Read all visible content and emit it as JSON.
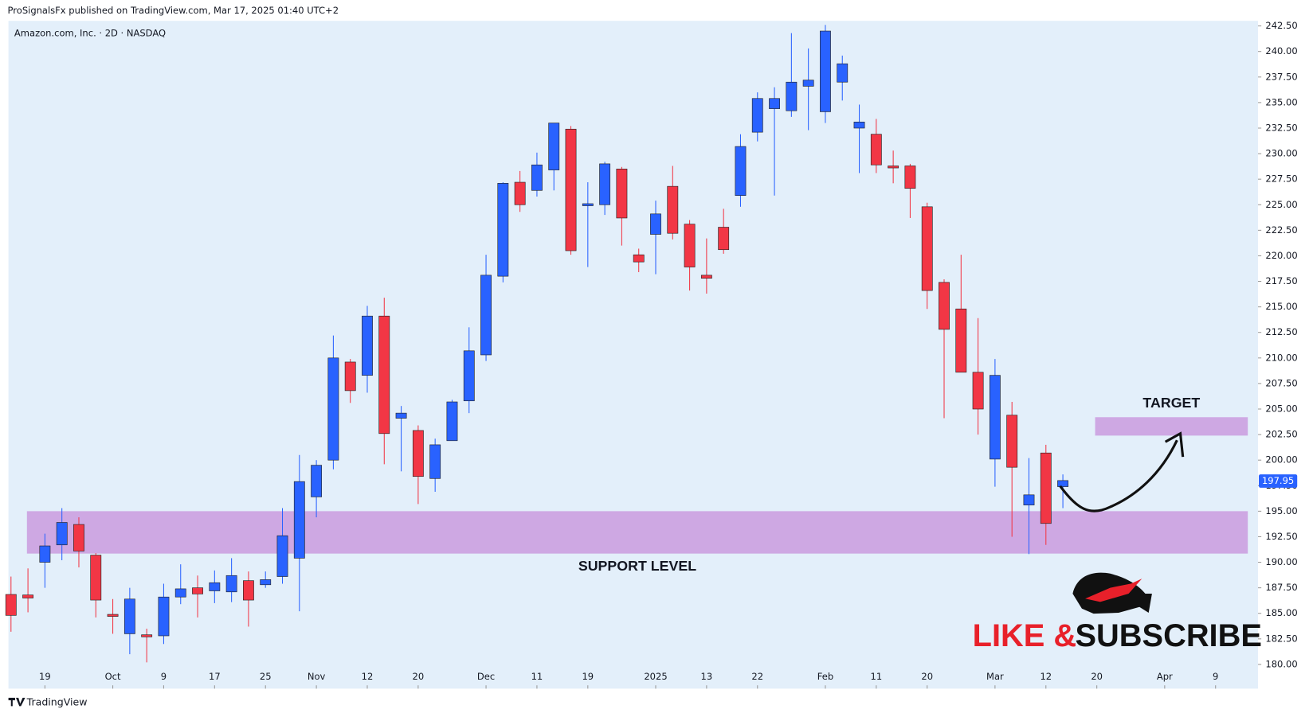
{
  "header": {
    "publisher": "ProSignalsFx published on TradingView.com, Mar 17, 2025 01:40 UTC+2",
    "footer": "TradingView"
  },
  "chart_data": {
    "type": "candlestick",
    "title": "Amazon.com, Inc. · 2D · NASDAQ",
    "up_color": "#2962ff",
    "down_color": "#f23645",
    "candles": [
      {
        "open": 186.85,
        "high": 188.6,
        "low": 183.2,
        "close": 184.8
      },
      {
        "open": 186.8,
        "high": 189.4,
        "low": 185.1,
        "close": 186.5
      },
      {
        "open": 190.0,
        "high": 192.8,
        "low": 187.5,
        "close": 191.6
      },
      {
        "open": 191.7,
        "high": 195.3,
        "low": 190.2,
        "close": 193.9
      },
      {
        "open": 193.7,
        "high": 194.4,
        "low": 189.5,
        "close": 191.1
      },
      {
        "open": 190.7,
        "high": 190.9,
        "low": 184.6,
        "close": 186.3
      },
      {
        "open": 184.9,
        "high": 186.4,
        "low": 183.0,
        "close": 184.7
      },
      {
        "open": 183.0,
        "high": 187.5,
        "low": 181.0,
        "close": 186.4
      },
      {
        "open": 182.9,
        "high": 183.5,
        "low": 180.2,
        "close": 182.7
      },
      {
        "open": 182.8,
        "high": 187.9,
        "low": 182.0,
        "close": 186.6
      },
      {
        "open": 186.6,
        "high": 189.8,
        "low": 185.9,
        "close": 187.4
      },
      {
        "open": 187.5,
        "high": 188.7,
        "low": 184.6,
        "close": 186.9
      },
      {
        "open": 187.2,
        "high": 189.2,
        "low": 186.0,
        "close": 188.0
      },
      {
        "open": 187.1,
        "high": 190.4,
        "low": 186.1,
        "close": 188.7
      },
      {
        "open": 188.2,
        "high": 189.1,
        "low": 183.7,
        "close": 186.3
      },
      {
        "open": 187.8,
        "high": 189.1,
        "low": 187.5,
        "close": 188.3
      },
      {
        "open": 188.6,
        "high": 195.3,
        "low": 187.9,
        "close": 192.6
      },
      {
        "open": 190.4,
        "high": 200.5,
        "low": 185.2,
        "close": 197.9
      },
      {
        "open": 196.4,
        "high": 200.0,
        "low": 194.4,
        "close": 199.5
      },
      {
        "open": 200.0,
        "high": 212.2,
        "low": 199.1,
        "close": 210.0
      },
      {
        "open": 209.6,
        "high": 209.9,
        "low": 205.6,
        "close": 206.8
      },
      {
        "open": 208.3,
        "high": 215.1,
        "low": 206.6,
        "close": 214.1
      },
      {
        "open": 214.1,
        "high": 215.9,
        "low": 199.6,
        "close": 202.6
      },
      {
        "open": 204.1,
        "high": 205.3,
        "low": 198.9,
        "close": 204.6
      },
      {
        "open": 202.9,
        "high": 203.4,
        "low": 195.7,
        "close": 198.4
      },
      {
        "open": 198.2,
        "high": 202.1,
        "low": 196.9,
        "close": 201.5
      },
      {
        "open": 201.9,
        "high": 205.9,
        "low": 201.9,
        "close": 205.7
      },
      {
        "open": 205.8,
        "high": 213.0,
        "low": 204.6,
        "close": 210.7
      },
      {
        "open": 210.3,
        "high": 220.1,
        "low": 209.7,
        "close": 218.1
      },
      {
        "open": 218.0,
        "high": 227.2,
        "low": 217.4,
        "close": 227.1
      },
      {
        "open": 227.2,
        "high": 228.3,
        "low": 224.3,
        "close": 225.0
      },
      {
        "open": 226.4,
        "high": 230.1,
        "low": 225.8,
        "close": 228.9
      },
      {
        "open": 228.4,
        "high": 233.0,
        "low": 226.4,
        "close": 233.0
      },
      {
        "open": 232.4,
        "high": 232.7,
        "low": 220.1,
        "close": 220.5
      },
      {
        "open": 224.9,
        "high": 227.2,
        "low": 218.9,
        "close": 225.1
      },
      {
        "open": 225.0,
        "high": 229.2,
        "low": 224.0,
        "close": 229.0
      },
      {
        "open": 228.5,
        "high": 228.7,
        "low": 221.0,
        "close": 223.7
      },
      {
        "open": 220.1,
        "high": 220.7,
        "low": 218.4,
        "close": 219.4
      },
      {
        "open": 222.1,
        "high": 225.4,
        "low": 218.2,
        "close": 224.1
      },
      {
        "open": 226.8,
        "high": 228.8,
        "low": 221.6,
        "close": 222.2
      },
      {
        "open": 223.1,
        "high": 223.5,
        "low": 216.6,
        "close": 218.9
      },
      {
        "open": 218.1,
        "high": 221.7,
        "low": 216.3,
        "close": 217.8
      },
      {
        "open": 222.8,
        "high": 224.6,
        "low": 220.2,
        "close": 220.6
      },
      {
        "open": 225.9,
        "high": 231.9,
        "low": 224.8,
        "close": 230.7
      },
      {
        "open": 232.1,
        "high": 236.0,
        "low": 231.2,
        "close": 235.4
      },
      {
        "open": 234.4,
        "high": 236.5,
        "low": 225.9,
        "close": 235.4
      },
      {
        "open": 234.2,
        "high": 241.8,
        "low": 233.6,
        "close": 237.0
      },
      {
        "open": 236.6,
        "high": 240.3,
        "low": 232.3,
        "close": 237.2
      },
      {
        "open": 234.1,
        "high": 242.6,
        "low": 233.0,
        "close": 242.0
      },
      {
        "open": 237.0,
        "high": 239.6,
        "low": 235.2,
        "close": 238.8
      },
      {
        "open": 232.5,
        "high": 234.8,
        "low": 228.1,
        "close": 233.1
      },
      {
        "open": 231.9,
        "high": 233.4,
        "low": 228.1,
        "close": 228.9
      },
      {
        "open": 228.8,
        "high": 230.3,
        "low": 227.1,
        "close": 228.6
      },
      {
        "open": 228.8,
        "high": 229.0,
        "low": 223.7,
        "close": 226.6
      },
      {
        "open": 224.8,
        "high": 225.2,
        "low": 214.8,
        "close": 216.6
      },
      {
        "open": 217.4,
        "high": 217.7,
        "low": 204.1,
        "close": 212.8
      },
      {
        "open": 214.8,
        "high": 220.1,
        "low": 208.6,
        "close": 208.6
      },
      {
        "open": 208.6,
        "high": 213.9,
        "low": 202.5,
        "close": 205.0
      },
      {
        "open": 200.1,
        "high": 209.9,
        "low": 197.4,
        "close": 208.3
      },
      {
        "open": 204.4,
        "high": 205.7,
        "low": 192.5,
        "close": 199.3
      },
      {
        "open": 195.6,
        "high": 200.2,
        "low": 190.8,
        "close": 196.6
      },
      {
        "open": 200.7,
        "high": 201.5,
        "low": 191.7,
        "close": 193.8
      },
      {
        "open": 197.4,
        "high": 198.6,
        "low": 195.3,
        "close": 198.0
      }
    ],
    "xlim": [
      -0.15,
      73.5
    ],
    "xticks": [
      {
        "value": 2,
        "label": "19"
      },
      {
        "value": 6,
        "label": "Oct"
      },
      {
        "value": 9,
        "label": "9"
      },
      {
        "value": 12,
        "label": "17"
      },
      {
        "value": 15,
        "label": "25"
      },
      {
        "value": 18,
        "label": "Nov"
      },
      {
        "value": 21,
        "label": "12"
      },
      {
        "value": 24,
        "label": "20"
      },
      {
        "value": 28,
        "label": "Dec"
      },
      {
        "value": 31,
        "label": "11"
      },
      {
        "value": 34,
        "label": "19"
      },
      {
        "value": 38,
        "label": "2025"
      },
      {
        "value": 41,
        "label": "13"
      },
      {
        "value": 44,
        "label": "22"
      },
      {
        "value": 48,
        "label": "Feb"
      },
      {
        "value": 51,
        "label": "11"
      },
      {
        "value": 54,
        "label": "20"
      },
      {
        "value": 58,
        "label": "Mar"
      },
      {
        "value": 61,
        "label": "12"
      },
      {
        "value": 64,
        "label": "20"
      },
      {
        "value": 68,
        "label": "Apr"
      },
      {
        "value": 71,
        "label": "9"
      }
    ],
    "ylim": [
      179.75,
      243
    ],
    "yticks": [
      {
        "value": 180,
        "label": "180.00"
      },
      {
        "value": 182.5,
        "label": "182.50"
      },
      {
        "value": 185,
        "label": "185.00"
      },
      {
        "value": 187.5,
        "label": "187.50"
      },
      {
        "value": 190,
        "label": "190.00"
      },
      {
        "value": 192.5,
        "label": "192.50"
      },
      {
        "value": 195,
        "label": "195.00"
      },
      {
        "value": 197.5,
        "label": "197.50"
      },
      {
        "value": 200,
        "label": "200.00"
      },
      {
        "value": 202.5,
        "label": "202.50"
      },
      {
        "value": 205,
        "label": "205.00"
      },
      {
        "value": 207.5,
        "label": "207.50"
      },
      {
        "value": 210,
        "label": "210.00"
      },
      {
        "value": 212.5,
        "label": "212.50"
      },
      {
        "value": 215,
        "label": "215.00"
      },
      {
        "value": 217.5,
        "label": "217.50"
      },
      {
        "value": 220,
        "label": "220.00"
      },
      {
        "value": 222.5,
        "label": "222.50"
      },
      {
        "value": 225,
        "label": "225.00"
      },
      {
        "value": 227.5,
        "label": "227.50"
      },
      {
        "value": 230,
        "label": "230.00"
      },
      {
        "value": 232.5,
        "label": "232.50"
      },
      {
        "value": 235,
        "label": "235.00"
      },
      {
        "value": 237.5,
        "label": "237.50"
      },
      {
        "value": 240,
        "label": "240.00"
      },
      {
        "value": 242.5,
        "label": "242.50"
      }
    ],
    "last_price": 197.95,
    "zones": [
      {
        "label": "SUPPORT LEVEL",
        "low": 190.85,
        "high": 195.0,
        "start": 0.94,
        "end": 72.9,
        "label_position": "below",
        "color": "#cea8e3"
      },
      {
        "label": "TARGET",
        "low": 202.4,
        "high": 204.2,
        "start": 63.9,
        "end": 72.9,
        "label_position": "above",
        "color": "#cea8e3"
      }
    ],
    "logo_text": [
      "LIKE &",
      "SUBSCRIBE"
    ]
  }
}
